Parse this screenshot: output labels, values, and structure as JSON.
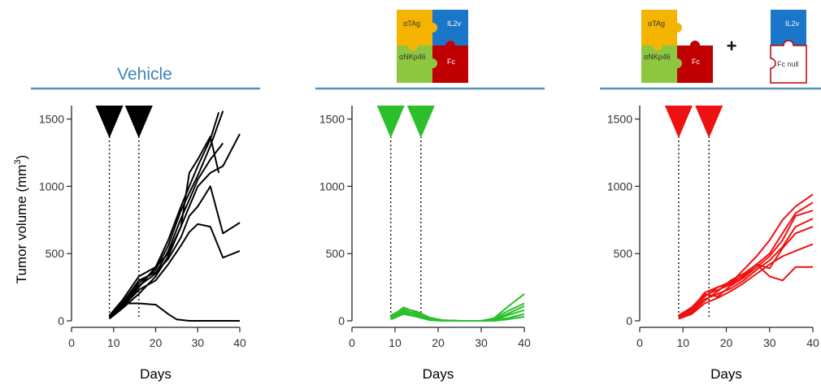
{
  "figure": {
    "ylabel_main": "Tumor volume (mm",
    "ylabel_sup": "3",
    "ylabel_close": ")",
    "header_line_color": "#5b93b7"
  },
  "puzzle_labels": {
    "atag": "αTAg",
    "il2v": "IL2v",
    "anknp46": "αNKp46",
    "fc": "Fc",
    "fcnull": "Fc null",
    "plus": "+"
  },
  "puzzle_colors": {
    "atag": "#f4b400",
    "il2v": "#1a76c9",
    "anknp46": "#8dc63f",
    "fc": "#c00000",
    "fcnull_stroke": "#c00000"
  },
  "chart_data": [
    {
      "type": "line",
      "title": "Vehicle",
      "xlabel": "Days",
      "ylabel": "Tumor volume (mm3)",
      "xlim": [
        0,
        40
      ],
      "ylim": [
        0,
        1600
      ],
      "xticks": [
        "0",
        "10",
        "20",
        "30",
        "40"
      ],
      "yticks": [
        "0",
        "500",
        "1000",
        "1500"
      ],
      "color": "#000000",
      "dosing_days": [
        9,
        16
      ],
      "dosing_marker_color": "#000000",
      "series": [
        {
          "x": [
            9,
            12,
            16,
            20,
            23,
            26,
            28,
            30,
            33,
            35
          ],
          "y": [
            20,
            100,
            250,
            400,
            600,
            850,
            1000,
            1150,
            1350,
            1550
          ]
        },
        {
          "x": [
            9,
            12,
            16,
            20,
            23,
            26,
            28,
            30,
            33,
            36
          ],
          "y": [
            30,
            120,
            280,
            380,
            560,
            820,
            950,
            1080,
            1300,
            1560
          ]
        },
        {
          "x": [
            9,
            12,
            16,
            20,
            23,
            26,
            28,
            30,
            33,
            36
          ],
          "y": [
            25,
            110,
            260,
            350,
            520,
            760,
            900,
            1050,
            1200,
            1320
          ]
        },
        {
          "x": [
            9,
            12,
            16,
            20,
            23,
            26,
            28,
            30,
            33,
            36,
            40
          ],
          "y": [
            40,
            150,
            330,
            400,
            500,
            700,
            850,
            1000,
            1100,
            1150,
            1390
          ]
        },
        {
          "x": [
            9,
            12,
            16,
            20,
            23,
            26,
            28,
            30,
            33,
            35
          ],
          "y": [
            15,
            90,
            200,
            330,
            480,
            700,
            1100,
            1200,
            1370,
            1100
          ]
        },
        {
          "x": [
            9,
            12,
            16,
            20,
            23,
            26,
            28,
            30,
            33,
            36,
            40
          ],
          "y": [
            35,
            130,
            300,
            360,
            460,
            620,
            780,
            850,
            1000,
            650,
            730
          ]
        },
        {
          "x": [
            9,
            12,
            16,
            20,
            23,
            26,
            28,
            30,
            33,
            36,
            40
          ],
          "y": [
            20,
            100,
            230,
            300,
            420,
            560,
            660,
            720,
            700,
            470,
            520
          ]
        },
        {
          "x": [
            9,
            12,
            16,
            20,
            23,
            25,
            28,
            30
          ],
          "y": [
            40,
            130,
            130,
            120,
            50,
            10,
            0,
            0
          ]
        },
        {
          "x": [
            28,
            40
          ],
          "y": [
            0,
            0
          ]
        }
      ]
    },
    {
      "type": "line",
      "title": "",
      "xlabel": "Days",
      "ylabel": "",
      "xlim": [
        0,
        40
      ],
      "ylim": [
        0,
        1600
      ],
      "xticks": [
        "0",
        "10",
        "20",
        "30",
        "40"
      ],
      "yticks": [
        "0",
        "500",
        "1000",
        "1500"
      ],
      "color": "#2bc02b",
      "dosing_days": [
        9,
        16
      ],
      "dosing_marker_color": "#2bc02b",
      "series": [
        {
          "x": [
            9,
            12,
            15,
            18,
            21,
            25,
            30,
            33,
            36,
            40
          ],
          "y": [
            30,
            100,
            60,
            20,
            5,
            0,
            0,
            20,
            100,
            200
          ]
        },
        {
          "x": [
            9,
            12,
            15,
            18,
            21,
            25,
            30,
            33,
            36,
            40
          ],
          "y": [
            20,
            80,
            50,
            15,
            5,
            0,
            0,
            15,
            70,
            130
          ]
        },
        {
          "x": [
            9,
            12,
            15,
            18,
            21,
            25,
            30,
            33,
            36,
            40
          ],
          "y": [
            40,
            90,
            70,
            25,
            5,
            0,
            0,
            10,
            50,
            110
          ]
        },
        {
          "x": [
            9,
            12,
            15,
            18,
            21,
            25,
            30,
            33,
            36,
            40
          ],
          "y": [
            25,
            70,
            55,
            10,
            0,
            0,
            0,
            5,
            40,
            80
          ]
        },
        {
          "x": [
            9,
            12,
            15,
            18,
            21,
            25,
            30,
            33,
            36,
            40
          ],
          "y": [
            15,
            60,
            40,
            10,
            0,
            0,
            0,
            5,
            20,
            50
          ]
        },
        {
          "x": [
            9,
            12,
            15,
            18,
            21,
            25,
            30,
            33,
            36,
            40
          ],
          "y": [
            10,
            50,
            30,
            5,
            0,
            0,
            0,
            0,
            10,
            30
          ]
        }
      ]
    },
    {
      "type": "line",
      "title": "",
      "xlabel": "Days",
      "ylabel": "",
      "xlim": [
        0,
        40
      ],
      "ylim": [
        0,
        1600
      ],
      "xticks": [
        "0",
        "10",
        "20",
        "30",
        "40"
      ],
      "yticks": [
        "0",
        "500",
        "1000",
        "1500"
      ],
      "color": "#ee1111",
      "dosing_days": [
        9,
        16
      ],
      "dosing_marker_color": "#ee1111",
      "series": [
        {
          "x": [
            9,
            12,
            15,
            18,
            21,
            24,
            27,
            30,
            33,
            36,
            40
          ],
          "y": [
            30,
            80,
            180,
            250,
            280,
            380,
            480,
            600,
            750,
            850,
            940
          ]
        },
        {
          "x": [
            9,
            12,
            15,
            18,
            21,
            24,
            27,
            30,
            33,
            36,
            40
          ],
          "y": [
            20,
            60,
            150,
            220,
            300,
            350,
            420,
            500,
            650,
            800,
            880
          ]
        },
        {
          "x": [
            9,
            12,
            15,
            18,
            21,
            24,
            27,
            30,
            33,
            36,
            40
          ],
          "y": [
            40,
            100,
            200,
            180,
            260,
            320,
            400,
            480,
            600,
            780,
            820
          ]
        },
        {
          "x": [
            9,
            12,
            15,
            18,
            21,
            24,
            27,
            30,
            33,
            36,
            40
          ],
          "y": [
            25,
            70,
            160,
            200,
            240,
            300,
            380,
            450,
            550,
            700,
            760
          ]
        },
        {
          "x": [
            9,
            12,
            15,
            18,
            21,
            24,
            27,
            30,
            33,
            36,
            40
          ],
          "y": [
            35,
            90,
            190,
            230,
            270,
            340,
            420,
            390,
            540,
            650,
            700
          ]
        },
        {
          "x": [
            9,
            12,
            15,
            18,
            21,
            24,
            27,
            30,
            33,
            36,
            40
          ],
          "y": [
            15,
            50,
            130,
            170,
            220,
            280,
            350,
            420,
            480,
            520,
            570
          ]
        },
        {
          "x": [
            9,
            12,
            15,
            18,
            21,
            24,
            27,
            30,
            33,
            36,
            40
          ],
          "y": [
            30,
            85,
            210,
            250,
            290,
            330,
            420,
            330,
            300,
            400,
            400
          ]
        }
      ]
    }
  ]
}
